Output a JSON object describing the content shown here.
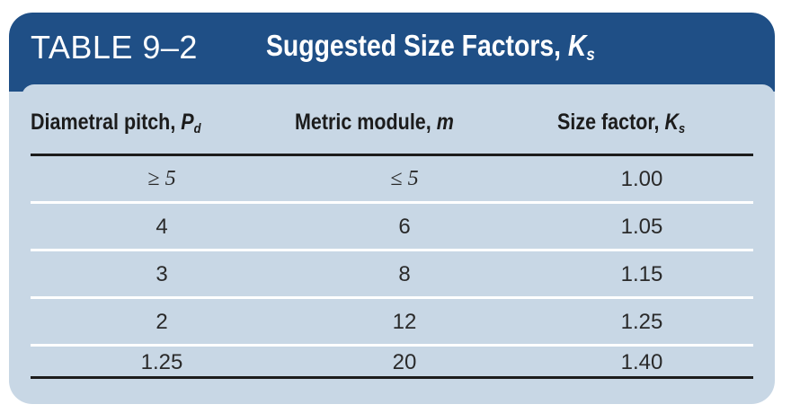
{
  "table": {
    "number": "TABLE 9–2",
    "title_text": "Suggested Size Factors, ",
    "title_var": "K",
    "title_sub": "s"
  },
  "columns": {
    "c1_text": "Diametral pitch, ",
    "c1_var": "P",
    "c1_sub": "d",
    "c2_text": "Metric module, ",
    "c2_var": "m",
    "c3_text": "Size factor, ",
    "c3_var": "K",
    "c3_sub": "s"
  },
  "rows": [
    {
      "pitch": "≥ 5",
      "module": "≤ 5",
      "factor": "1.00"
    },
    {
      "pitch": "4",
      "module": "6",
      "factor": "1.05"
    },
    {
      "pitch": "3",
      "module": "8",
      "factor": "1.15"
    },
    {
      "pitch": "2",
      "module": "12",
      "factor": "1.25"
    },
    {
      "pitch": "1.25",
      "module": "20",
      "factor": "1.40"
    }
  ],
  "colors": {
    "banner": "#1f4f86",
    "panel": "#c8d7e5",
    "rule": "#1c1c1c",
    "separator": "#ffffff"
  }
}
